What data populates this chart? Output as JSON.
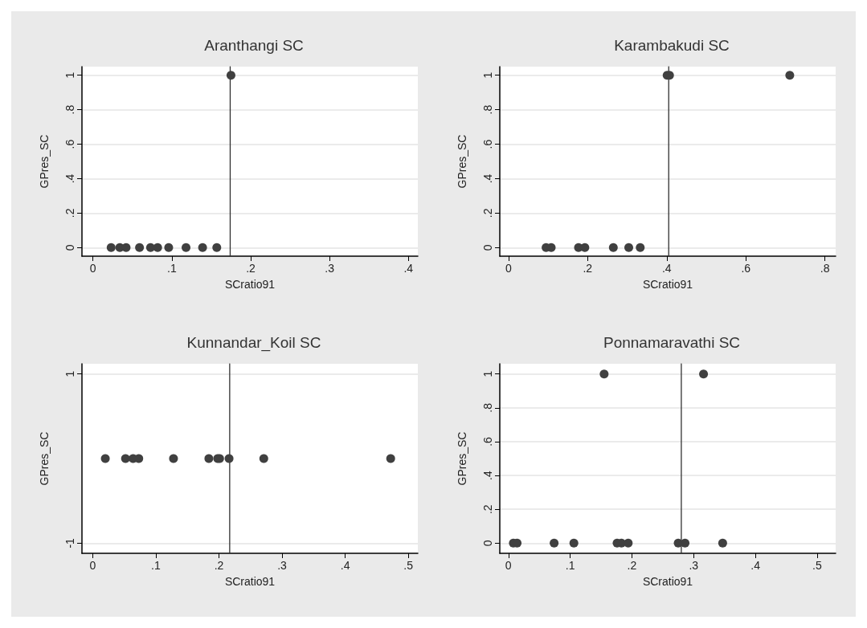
{
  "chart_data": [
    {
      "type": "scatter",
      "title": "Aranthangi SC",
      "xlabel": "SCratio91",
      "ylabel": "GPres_SC",
      "marker": "circle",
      "grid": "y",
      "series": [
        {
          "color": "#404040",
          "x": [
            0.023,
            0.034,
            0.042,
            0.059,
            0.073,
            0.082,
            0.096,
            0.118,
            0.139,
            0.157,
            0.175
          ],
          "values": [
            0,
            0,
            0,
            0,
            0,
            0,
            0,
            0,
            0,
            0,
            1
          ]
        }
      ],
      "xlim": [
        -0.014,
        0.412
      ],
      "xticks": [
        {
          "value": 0,
          "label": "0"
        },
        {
          "value": 0.1,
          "label": ".1"
        },
        {
          "value": 0.2,
          "label": ".2"
        },
        {
          "value": 0.3,
          "label": ".3"
        },
        {
          "value": 0.4,
          "label": ".4"
        }
      ],
      "ylim": [
        -0.05,
        1.05
      ],
      "yticks": [
        0,
        {
          "value": 0.2,
          "label": ".2"
        },
        {
          "value": 0.4,
          "label": ".4"
        },
        {
          "value": 0.6,
          "label": ".6"
        },
        {
          "value": 0.8,
          "label": ".8"
        },
        1
      ],
      "ref_lines": [
        {
          "axis": "x",
          "value": 0.174,
          "color": "#303030"
        }
      ]
    },
    {
      "type": "scatter",
      "title": "Karambakudi SC",
      "xlabel": "SCratio91",
      "ylabel": "GPres_SC",
      "marker": "circle",
      "grid": "y",
      "series": [
        {
          "color": "#404040",
          "x": [
            0.095,
            0.108,
            0.177,
            0.193,
            0.265,
            0.304,
            0.333,
            0.401,
            0.407,
            0.711
          ],
          "values": [
            0,
            0,
            0,
            0,
            0,
            0,
            0,
            1,
            1,
            1
          ]
        }
      ],
      "xlim": [
        -0.022,
        0.827
      ],
      "xticks": [
        {
          "value": 0,
          "label": "0"
        },
        {
          "value": 0.2,
          "label": ".2"
        },
        {
          "value": 0.4,
          "label": ".4"
        },
        {
          "value": 0.6,
          "label": ".6"
        },
        {
          "value": 0.8,
          "label": ".8"
        }
      ],
      "ylim": [
        -0.05,
        1.05
      ],
      "yticks": [
        0,
        {
          "value": 0.2,
          "label": ".2"
        },
        {
          "value": 0.4,
          "label": ".4"
        },
        {
          "value": 0.6,
          "label": ".6"
        },
        {
          "value": 0.8,
          "label": ".8"
        },
        1
      ],
      "ref_lines": [
        {
          "axis": "x",
          "value": 0.405,
          "color": "#303030"
        }
      ]
    },
    {
      "type": "scatter",
      "title": "Kunnandar_Koil SC",
      "xlabel": "SCratio91",
      "ylabel": "GPres_SC",
      "marker": "circle",
      "grid": "y",
      "series": [
        {
          "color": "#404040",
          "x": [
            0.02,
            0.052,
            0.064,
            0.073,
            0.128,
            0.184,
            0.198,
            0.201,
            0.216,
            0.271,
            0.472
          ],
          "values": [
            0,
            0,
            0,
            0,
            0,
            0,
            0,
            0,
            0,
            0,
            0
          ]
        }
      ],
      "xlim": [
        -0.017,
        0.515
      ],
      "xticks": [
        {
          "value": 0,
          "label": "0"
        },
        {
          "value": 0.1,
          "label": ".1"
        },
        {
          "value": 0.2,
          "label": ".2"
        },
        {
          "value": 0.3,
          "label": ".3"
        },
        {
          "value": 0.4,
          "label": ".4"
        },
        {
          "value": 0.5,
          "label": ".5"
        }
      ],
      "ylim": [
        -1.12,
        1.12
      ],
      "yticks": [
        -1,
        1
      ],
      "ref_lines": [
        {
          "axis": "x",
          "value": 0.217,
          "color": "#303030"
        }
      ]
    },
    {
      "type": "scatter",
      "title": "Ponnamaravathi SC",
      "xlabel": "SCratio91",
      "ylabel": "GPres_SC",
      "marker": "circle",
      "grid": "y",
      "series": [
        {
          "color": "#404040",
          "x": [
            0.008,
            0.014,
            0.074,
            0.106,
            0.176,
            0.183,
            0.194,
            0.275,
            0.286,
            0.347,
            0.155,
            0.316
          ],
          "values": [
            0,
            0,
            0,
            0,
            0,
            0,
            0,
            0,
            0,
            0,
            1,
            1
          ]
        }
      ],
      "xlim": [
        -0.014,
        0.53
      ],
      "xticks": [
        {
          "value": 0,
          "label": "0"
        },
        {
          "value": 0.1,
          "label": ".1"
        },
        {
          "value": 0.2,
          "label": ".2"
        },
        {
          "value": 0.3,
          "label": ".3"
        },
        {
          "value": 0.4,
          "label": ".4"
        },
        {
          "value": 0.5,
          "label": ".5"
        }
      ],
      "ylim": [
        -0.06,
        1.06
      ],
      "yticks": [
        0,
        {
          "value": 0.2,
          "label": ".2"
        },
        {
          "value": 0.4,
          "label": ".4"
        },
        {
          "value": 0.6,
          "label": ".6"
        },
        {
          "value": 0.8,
          "label": ".8"
        },
        1
      ],
      "ref_lines": [
        {
          "axis": "x",
          "value": 0.28,
          "color": "#303030"
        }
      ]
    }
  ]
}
